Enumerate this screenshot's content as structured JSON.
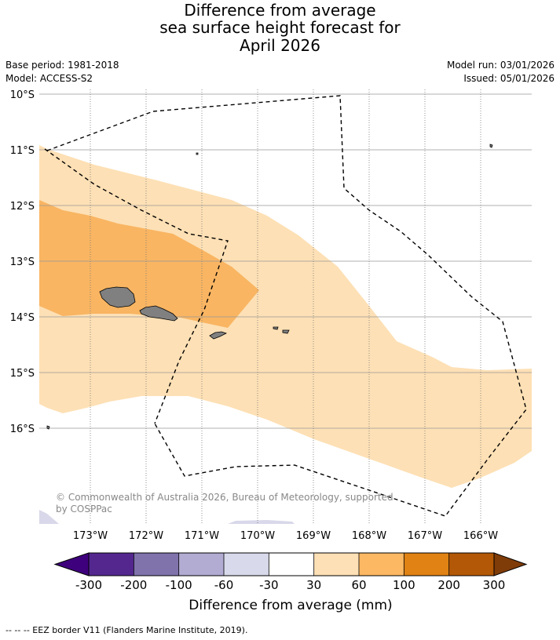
{
  "title": {
    "line1": "Difference from average",
    "line2": "sea surface height forecast for",
    "line3": "April 2026"
  },
  "meta": {
    "base_period": "Base period: 1981-2018",
    "model": "Model: ACCESS-S2",
    "model_run": "Model run: 03/01/2026",
    "issued": "Issued: 05/01/2026"
  },
  "map": {
    "lat_labels": [
      "10°S",
      "11°S",
      "12°S",
      "13°S",
      "14°S",
      "15°S",
      "16°S"
    ],
    "lon_labels": [
      "173°W",
      "172°W",
      "171°W",
      "170°W",
      "169°W",
      "168°W",
      "167°W",
      "166°W"
    ],
    "copyright": "© Commonwealth of Australia 2026, Bureau of Meteorology, supported by COSPPac",
    "fill_colors": {
      "c30_60": "#fde0b5",
      "c60_100": "#f9b562",
      "cneg": "#d8d8ea",
      "land": "#808080"
    }
  },
  "colorbar": {
    "ticks": [
      "-300",
      "-200",
      "-100",
      "-60",
      "-30",
      "30",
      "60",
      "100",
      "200",
      "300"
    ],
    "colors": [
      "#3f007d",
      "#54278f",
      "#8073ac",
      "#b2abd2",
      "#d8daeb",
      "#ffffff",
      "#fee0b6",
      "#fdb863",
      "#e08214",
      "#b35806",
      "#7f3b08"
    ],
    "title": "Difference from average (mm)"
  },
  "footer": {
    "legend": "--  --  -- EEZ border V11 (Flanders Marine Institute, 2019)."
  }
}
